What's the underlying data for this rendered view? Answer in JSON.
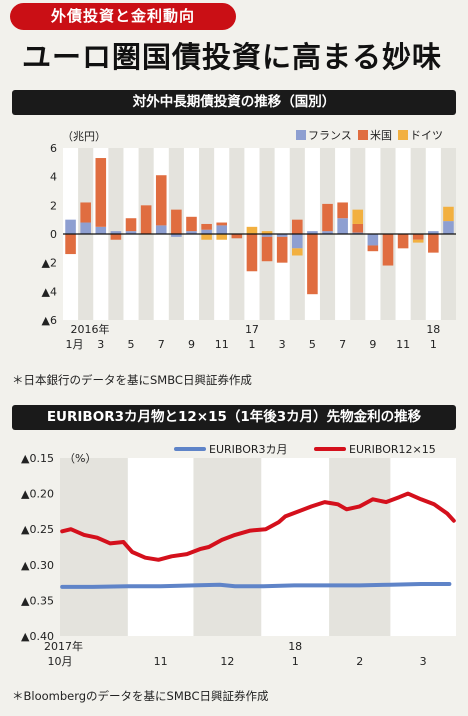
{
  "tagline": "外債投資と金利動向",
  "headline": "ユーロ圏国債投資に高まる妙味",
  "chart1": {
    "title": "対外中長期債投資の推移（国別）",
    "note": "＊日本銀行のデータを基にSMBC日興証券作成"
  },
  "chart2": {
    "title": "EURIBOR3カ月物と12×15（1年後3カ月）先物金利の推移",
    "note": "＊Bloombergのデータを基にSMBC日興証券作成"
  },
  "chart_data": [
    {
      "type": "bar",
      "stacked": true,
      "unit_label": "（兆円）",
      "ylim": [
        -6,
        6
      ],
      "y_ticks": [
        "6",
        "4",
        "2",
        "0",
        "▲2",
        "▲4",
        "▲6"
      ],
      "y_tick_values": [
        6,
        4,
        2,
        0,
        -2,
        -4,
        -6
      ],
      "x_tick_labels": [
        {
          "index": 0,
          "top": "2016年",
          "bottom": "1月"
        },
        {
          "index": 2,
          "bottom": "3"
        },
        {
          "index": 4,
          "bottom": "5"
        },
        {
          "index": 6,
          "bottom": "7"
        },
        {
          "index": 8,
          "bottom": "9"
        },
        {
          "index": 10,
          "bottom": "11"
        },
        {
          "index": 12,
          "top": "17",
          "bottom": "1"
        },
        {
          "index": 14,
          "bottom": "3"
        },
        {
          "index": 16,
          "bottom": "5"
        },
        {
          "index": 18,
          "bottom": "7"
        },
        {
          "index": 20,
          "bottom": "9"
        },
        {
          "index": 22,
          "bottom": "11"
        },
        {
          "index": 24,
          "top": "18",
          "bottom": "1"
        }
      ],
      "legend_position": "top-right",
      "series": [
        {
          "name": "フランス",
          "color": "#8e9fd1",
          "values": [
            1.0,
            0.8,
            0.5,
            0.2,
            0.2,
            0.0,
            0.6,
            -0.2,
            0.2,
            0.3,
            0.6,
            0.0,
            0.0,
            -0.2,
            -0.2,
            -1.0,
            0.2,
            0.2,
            1.1,
            0.1,
            -0.8,
            0.0,
            0.0,
            0.0,
            0.2,
            0.9
          ]
        },
        {
          "name": "米国",
          "color": "#e06d40",
          "values": [
            -1.4,
            1.4,
            4.8,
            -0.4,
            0.9,
            2.0,
            3.5,
            1.7,
            1.0,
            0.4,
            0.2,
            -0.3,
            -2.6,
            -1.7,
            -1.8,
            1.0,
            -4.2,
            1.9,
            1.1,
            0.6,
            -0.4,
            -2.2,
            -1.0,
            -0.4,
            -1.3,
            0.0
          ]
        },
        {
          "name": "ドイツ",
          "color": "#f2b040",
          "values": [
            0.0,
            0.0,
            0.0,
            0.0,
            0.0,
            0.0,
            0.0,
            0.0,
            0.0,
            -0.4,
            -0.4,
            0.0,
            0.5,
            0.2,
            0.0,
            -0.5,
            0.0,
            0.0,
            0.0,
            1.0,
            0.0,
            0.0,
            0.0,
            -0.2,
            0.0,
            1.0
          ]
        }
      ]
    },
    {
      "type": "line",
      "unit_label": "（%）",
      "ylim": [
        -0.4,
        -0.15
      ],
      "y_ticks": [
        "▲0.15",
        "▲0.20",
        "▲0.25",
        "▲0.30",
        "▲0.35",
        "▲0.40"
      ],
      "y_tick_values": [
        -0.15,
        -0.2,
        -0.25,
        -0.3,
        -0.35,
        -0.4
      ],
      "x_start": "2017-10-01",
      "x_end": "2018-03-31",
      "x_tick_labels": [
        {
          "date": "2017-10-01",
          "top": "2017年",
          "bottom": "10月"
        },
        {
          "date": "2017-11-01",
          "bottom": "11"
        },
        {
          "date": "2017-12-01",
          "bottom": "12"
        },
        {
          "date": "2018-01-01",
          "top": "18",
          "bottom": "1"
        },
        {
          "date": "2018-02-01",
          "bottom": "2"
        },
        {
          "date": "2018-03-01",
          "bottom": "3"
        }
      ],
      "legend_position": "top",
      "series": [
        {
          "name": "EURIBOR3カ月",
          "color": "#5f84c8",
          "x": [
            "2017-10-02",
            "2017-10-16",
            "2017-11-01",
            "2017-11-16",
            "2017-12-01",
            "2017-12-13",
            "2017-12-20",
            "2018-01-02",
            "2018-01-16",
            "2018-02-01",
            "2018-02-15",
            "2018-03-01",
            "2018-03-15",
            "2018-03-28"
          ],
          "y": [
            -0.331,
            -0.331,
            -0.33,
            -0.33,
            -0.329,
            -0.328,
            -0.33,
            -0.33,
            -0.329,
            -0.329,
            -0.329,
            -0.328,
            -0.327,
            -0.327
          ]
        },
        {
          "name": "EURIBOR12×15",
          "color": "#d4101c",
          "x": [
            "2017-10-02",
            "2017-10-06",
            "2017-10-12",
            "2017-10-18",
            "2017-10-24",
            "2017-10-30",
            "2017-11-03",
            "2017-11-09",
            "2017-11-15",
            "2017-11-21",
            "2017-11-28",
            "2017-12-04",
            "2017-12-08",
            "2017-12-14",
            "2017-12-20",
            "2017-12-27",
            "2018-01-03",
            "2018-01-09",
            "2018-01-12",
            "2018-01-18",
            "2018-01-24",
            "2018-01-30",
            "2018-02-05",
            "2018-02-09",
            "2018-02-15",
            "2018-02-21",
            "2018-02-27",
            "2018-03-05",
            "2018-03-09",
            "2018-03-15",
            "2018-03-21",
            "2018-03-27",
            "2018-03-30"
          ],
          "y": [
            -0.253,
            -0.25,
            -0.258,
            -0.262,
            -0.27,
            -0.268,
            -0.282,
            -0.29,
            -0.293,
            -0.288,
            -0.285,
            -0.278,
            -0.275,
            -0.265,
            -0.258,
            -0.252,
            -0.25,
            -0.24,
            -0.232,
            -0.225,
            -0.218,
            -0.212,
            -0.215,
            -0.222,
            -0.218,
            -0.208,
            -0.212,
            -0.205,
            -0.2,
            -0.208,
            -0.215,
            -0.228,
            -0.238
          ]
        }
      ]
    }
  ]
}
